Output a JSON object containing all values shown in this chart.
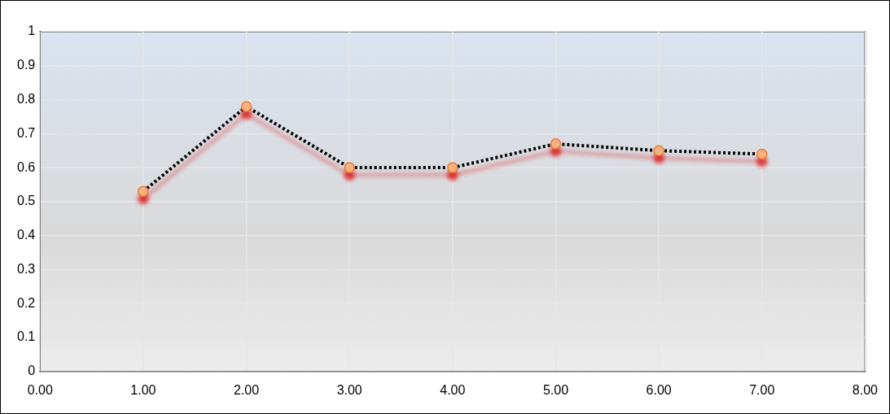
{
  "chart_data": {
    "type": "line",
    "x": [
      1,
      2,
      3,
      4,
      5,
      6,
      7
    ],
    "series": [
      {
        "color": "#000000",
        "values": [
          0.53,
          0.78,
          0.6,
          0.6,
          0.67,
          0.65,
          0.64
        ]
      }
    ],
    "xlim": [
      0,
      8
    ],
    "xticks": [
      {
        "value": 0,
        "label": "0.00"
      },
      {
        "value": 1,
        "label": "1.00"
      },
      {
        "value": 2,
        "label": "2.00"
      },
      {
        "value": 3,
        "label": "3.00"
      },
      {
        "value": 4,
        "label": "4.00"
      },
      {
        "value": 5,
        "label": "5.00"
      },
      {
        "value": 6,
        "label": "6.00"
      },
      {
        "value": 7,
        "label": "7.00"
      },
      {
        "value": 8,
        "label": "8.00"
      }
    ],
    "ylim": [
      0,
      1
    ],
    "yticks": [
      0,
      0.1,
      0.2,
      0.3,
      0.4,
      0.5,
      0.6,
      0.7,
      0.8,
      0.9,
      1
    ],
    "grid": true,
    "legend": false,
    "marker": "circle",
    "line_style": "dotted"
  }
}
